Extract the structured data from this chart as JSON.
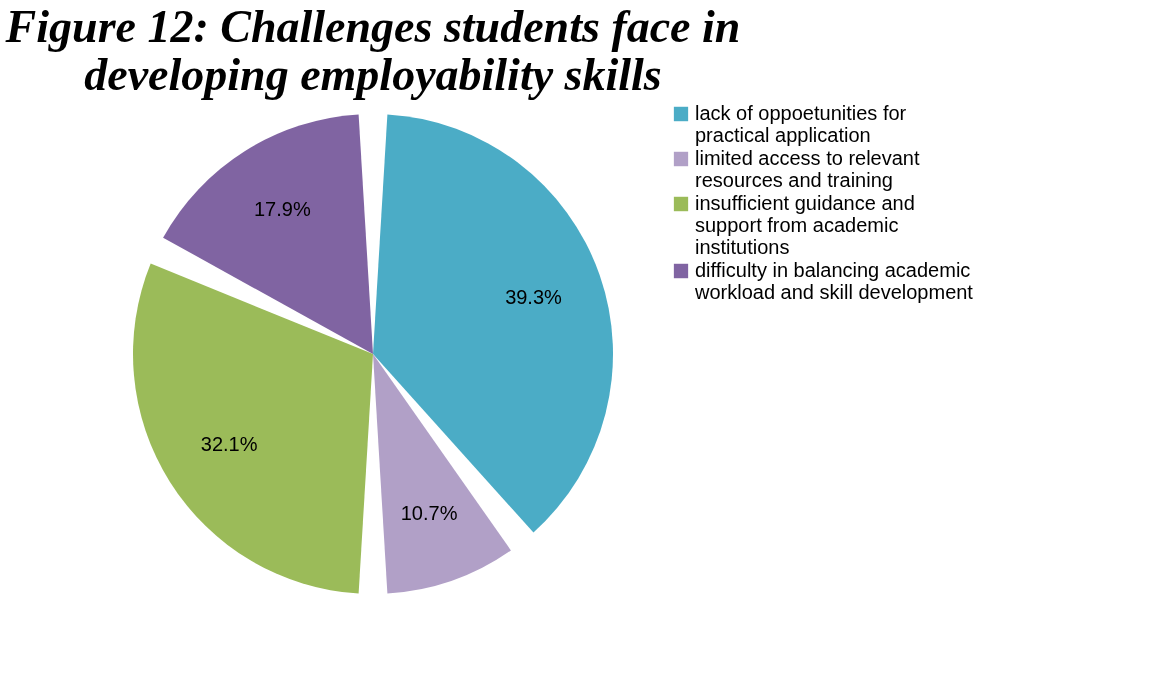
{
  "chart_data": {
    "type": "pie",
    "title": "Figure 12: Challenges students face in developing employability skills",
    "categories": [
      "lack of oppoetunities for practical application",
      "limited access to relevant resources and training",
      "insufficient guidance and support from academic institutions",
      "difficulty in balancing academic workload and skill development"
    ],
    "values": [
      39.3,
      10.7,
      32.1,
      17.9
    ],
    "colors": [
      "#4bacc6",
      "#b1a0c7",
      "#9bbb59",
      "#8064a2"
    ],
    "value_labels": [
      "39.3%",
      "10.7%",
      "32.1%",
      "17.9%"
    ],
    "legend": "right"
  }
}
